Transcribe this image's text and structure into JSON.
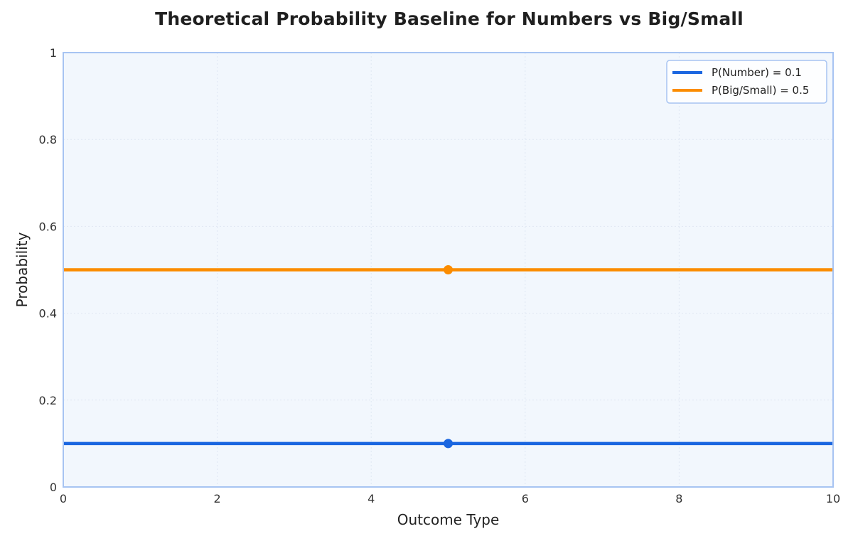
{
  "chart_data": {
    "type": "line",
    "title": "Theoretical Probability Baseline for Numbers vs Big/Small",
    "xlabel": "Outcome Type",
    "ylabel": "Probability",
    "xlim": [
      0,
      10
    ],
    "ylim": [
      0,
      1
    ],
    "x_ticks": [
      "0",
      "2",
      "4",
      "6",
      "8",
      "10"
    ],
    "y_ticks": [
      "0",
      "0.2",
      "0.4",
      "0.6",
      "0.8",
      "1"
    ],
    "grid": true,
    "legend_position": "top-right",
    "series": [
      {
        "name": "P(Number) = 0.1",
        "color": "#1a66e0",
        "x": [
          0,
          10
        ],
        "y": [
          0.1,
          0.1
        ],
        "marker": {
          "x": 5,
          "y": 0.1
        }
      },
      {
        "name": "P(Big/Small) = 0.5",
        "color": "#fb8c00",
        "x": [
          0,
          10
        ],
        "y": [
          0.5,
          0.5
        ],
        "marker": {
          "x": 5,
          "y": 0.5
        }
      }
    ],
    "colors": {
      "plot_background": "#f2f7fd",
      "frame": "#a7c4f2",
      "grid": "#dfe7f3"
    }
  }
}
